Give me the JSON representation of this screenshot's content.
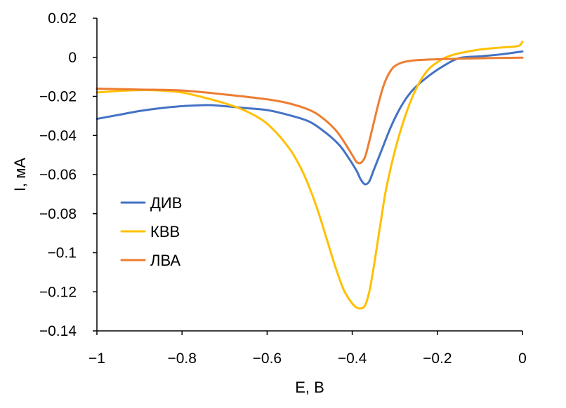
{
  "chart_data": {
    "type": "line",
    "title": "",
    "xlabel": "E, В",
    "ylabel": "I, мА",
    "xlim": [
      -1,
      0
    ],
    "ylim": [
      -0.14,
      0.02
    ],
    "grid": false,
    "legend_position": "left-middle",
    "x_ticks": [
      -1,
      -0.8,
      -0.6,
      -0.4,
      -0.2,
      0
    ],
    "x_tick_labels": [
      "−1",
      "−0.8",
      "−0.6",
      "−0.4",
      "−0.2",
      "0"
    ],
    "y_ticks": [
      0.02,
      0,
      -0.02,
      -0.04,
      -0.06,
      -0.08,
      -0.1,
      -0.12,
      -0.14
    ],
    "y_tick_labels": [
      "0.02",
      "0",
      "−0.02",
      "−0.04",
      "−0.06",
      "−0.08",
      "−0.1",
      "−0.12",
      "−0.14"
    ],
    "series": [
      {
        "name": "ДИВ",
        "color": "#4472C4",
        "x": [
          -1.0,
          -0.95,
          -0.9,
          -0.85,
          -0.8,
          -0.75,
          -0.73,
          -0.7,
          -0.65,
          -0.6,
          -0.55,
          -0.5,
          -0.46,
          -0.43,
          -0.41,
          -0.39,
          -0.38,
          -0.37,
          -0.36,
          -0.35,
          -0.33,
          -0.31,
          -0.29,
          -0.27,
          -0.25,
          -0.22,
          -0.19,
          -0.15,
          -0.1,
          -0.05,
          0.0
        ],
        "y": [
          -0.0315,
          -0.0295,
          -0.0275,
          -0.026,
          -0.025,
          -0.0245,
          -0.0245,
          -0.025,
          -0.026,
          -0.027,
          -0.0295,
          -0.033,
          -0.039,
          -0.045,
          -0.051,
          -0.058,
          -0.0625,
          -0.065,
          -0.0635,
          -0.058,
          -0.047,
          -0.036,
          -0.027,
          -0.02,
          -0.015,
          -0.0095,
          -0.005,
          -0.0005,
          0.0005,
          0.0015,
          0.003
        ]
      },
      {
        "name": "КВВ",
        "color": "#FFC000",
        "x": [
          -1.0,
          -0.95,
          -0.9,
          -0.85,
          -0.8,
          -0.75,
          -0.7,
          -0.65,
          -0.6,
          -0.55,
          -0.52,
          -0.5,
          -0.48,
          -0.46,
          -0.44,
          -0.42,
          -0.4,
          -0.39,
          -0.38,
          -0.37,
          -0.36,
          -0.35,
          -0.34,
          -0.33,
          -0.32,
          -0.3,
          -0.28,
          -0.26,
          -0.24,
          -0.22,
          -0.2,
          -0.18,
          -0.15,
          -0.1,
          -0.05,
          -0.01,
          0.0
        ],
        "y": [
          -0.018,
          -0.0172,
          -0.0168,
          -0.017,
          -0.018,
          -0.0205,
          -0.0235,
          -0.0275,
          -0.034,
          -0.046,
          -0.057,
          -0.067,
          -0.079,
          -0.093,
          -0.107,
          -0.119,
          -0.126,
          -0.128,
          -0.1285,
          -0.127,
          -0.12,
          -0.108,
          -0.094,
          -0.08,
          -0.067,
          -0.048,
          -0.033,
          -0.021,
          -0.012,
          -0.006,
          -0.0025,
          0.0,
          0.002,
          0.004,
          0.005,
          0.0058,
          0.008
        ]
      },
      {
        "name": "ЛВА",
        "color": "#ED7D31",
        "x": [
          -1.0,
          -0.9,
          -0.8,
          -0.7,
          -0.6,
          -0.55,
          -0.5,
          -0.47,
          -0.44,
          -0.42,
          -0.4,
          -0.39,
          -0.38,
          -0.37,
          -0.36,
          -0.35,
          -0.34,
          -0.33,
          -0.32,
          -0.31,
          -0.3,
          -0.28,
          -0.25,
          -0.2,
          -0.15,
          -0.1,
          -0.05,
          0.0
        ],
        "y": [
          -0.016,
          -0.0165,
          -0.017,
          -0.019,
          -0.0215,
          -0.0235,
          -0.027,
          -0.031,
          -0.037,
          -0.043,
          -0.05,
          -0.0535,
          -0.054,
          -0.051,
          -0.043,
          -0.034,
          -0.025,
          -0.017,
          -0.011,
          -0.007,
          -0.0045,
          -0.0025,
          -0.0015,
          -0.001,
          -0.0007,
          -0.0005,
          -0.0003,
          -0.0002
        ]
      }
    ]
  }
}
